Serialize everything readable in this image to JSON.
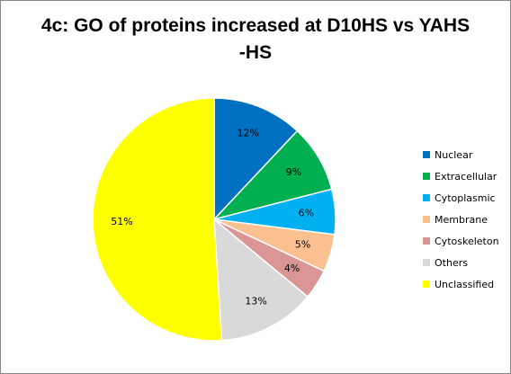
{
  "chart_data": {
    "type": "pie",
    "title": "4c: GO of proteins increased at D10HS vs YAHS -HS",
    "slices": [
      {
        "name": "Nuclear",
        "value": 12,
        "label": "12%",
        "color": "#0070C0"
      },
      {
        "name": "Extracellular",
        "value": 9,
        "label": "9%",
        "color": "#00B050"
      },
      {
        "name": "Cytoplasmic",
        "value": 6,
        "label": "6%",
        "color": "#00B0F0"
      },
      {
        "name": "Membrane",
        "value": 5,
        "label": "5%",
        "color": "#FAC090"
      },
      {
        "name": "Cytoskeleton",
        "value": 4,
        "label": "4%",
        "color": "#D99694"
      },
      {
        "name": "Others",
        "value": 13,
        "label": "13%",
        "color": "#D9D9D9"
      },
      {
        "name": "Unclassified",
        "value": 51,
        "label": "51%",
        "color": "#FFFF00"
      }
    ],
    "legend_position": "right"
  }
}
